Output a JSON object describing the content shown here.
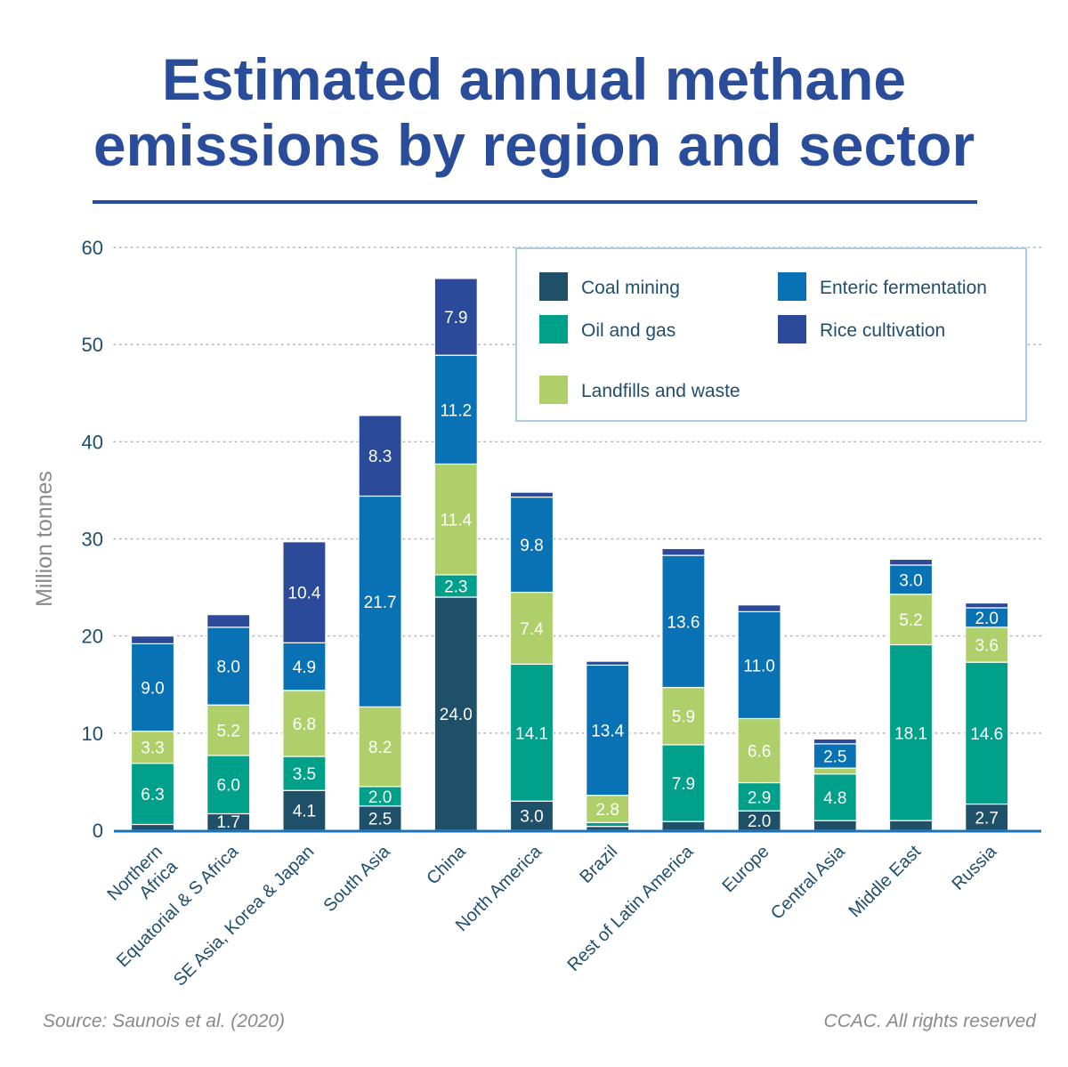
{
  "title_line1": "Estimated annual methane",
  "title_line2": "emissions by region and sector",
  "source": "Source: Saunois et al. (2020)",
  "credit": "CCAC. All rights reserved",
  "colors": {
    "title": "#2a4d9b",
    "axis_text": "#1f4e6e",
    "ylabel": "#8a8a8a",
    "baseline": "#1a72b8",
    "legend_border": "#a9cde3"
  },
  "chart_data": {
    "type": "bar",
    "stacked": true,
    "ylabel": "Million tonnes",
    "xlabel": "",
    "ylim": [
      0,
      60
    ],
    "yticks": [
      0,
      10,
      20,
      30,
      40,
      50,
      60
    ],
    "grid": "horizontal dotted",
    "legend_position": "top-right",
    "categories": [
      "Northern Africa",
      "Equatorial & S Africa",
      "SE Asia, Korea & Japan",
      "South Asia",
      "China",
      "North America",
      "Brazil",
      "Rest of Latin America",
      "Europe",
      "Central Asia",
      "Middle East",
      "Russia"
    ],
    "category_lines": [
      [
        "Northern",
        "Africa"
      ],
      [
        "Equatorial & S Africa"
      ],
      [
        "SE Asia, Korea & Japan"
      ],
      [
        "South Asia"
      ],
      [
        "China"
      ],
      [
        "North America"
      ],
      [
        "Brazil"
      ],
      [
        "Rest of Latin America"
      ],
      [
        "Europe"
      ],
      [
        "Central Asia"
      ],
      [
        "Middle East"
      ],
      [
        "Russia"
      ]
    ],
    "series": [
      {
        "name": "Coal mining",
        "color": "#1f5069",
        "values": [
          0.6,
          1.7,
          4.1,
          2.5,
          24.0,
          3.0,
          0.4,
          0.9,
          2.0,
          1.0,
          1.0,
          2.7
        ],
        "labels": [
          "",
          "1.7",
          "4.1",
          "2.5",
          "24.0",
          "3.0",
          "",
          "",
          "2.0",
          "",
          "",
          "2.7"
        ]
      },
      {
        "name": "Oil and gas",
        "color": "#00a08a",
        "values": [
          6.3,
          6.0,
          3.5,
          2.0,
          2.3,
          14.1,
          0.4,
          7.9,
          2.9,
          4.8,
          18.1,
          14.6
        ],
        "labels": [
          "6.3",
          "6.0",
          "3.5",
          "2.0",
          "2.3",
          "14.1",
          "",
          "7.9",
          "2.9",
          "4.8",
          "18.1",
          "14.6"
        ]
      },
      {
        "name": "Landfills and waste",
        "color": "#aecf6a",
        "values": [
          3.3,
          5.2,
          6.8,
          8.2,
          11.4,
          7.4,
          2.8,
          5.9,
          6.6,
          0.6,
          5.2,
          3.6
        ],
        "labels": [
          "3.3",
          "5.2",
          "6.8",
          "8.2",
          "11.4",
          "7.4",
          "2.8",
          "5.9",
          "6.6",
          "",
          "5.2",
          "3.6"
        ]
      },
      {
        "name": "Enteric fermentation",
        "color": "#0872b5",
        "values": [
          9.0,
          8.0,
          4.9,
          21.7,
          11.2,
          9.8,
          13.4,
          13.6,
          11.0,
          2.5,
          3.0,
          2.0
        ],
        "labels": [
          "9.0",
          "8.0",
          "4.9",
          "21.7",
          "11.2",
          "9.8",
          "13.4",
          "13.6",
          "11.0",
          "2.5",
          "3.0",
          "2.0"
        ]
      },
      {
        "name": "Rice cultivation",
        "color": "#2c4a9a",
        "values": [
          0.8,
          1.3,
          10.4,
          8.3,
          7.9,
          0.5,
          0.4,
          0.7,
          0.7,
          0.5,
          0.6,
          0.5
        ],
        "labels": [
          "",
          "",
          "10.4",
          "8.3",
          "7.9",
          "",
          "",
          "",
          "",
          "",
          "",
          ""
        ]
      }
    ],
    "legend_order": [
      "Coal mining",
      "Enteric fermentation",
      "Oil and gas",
      "Rice cultivation",
      "Landfills and waste"
    ]
  }
}
